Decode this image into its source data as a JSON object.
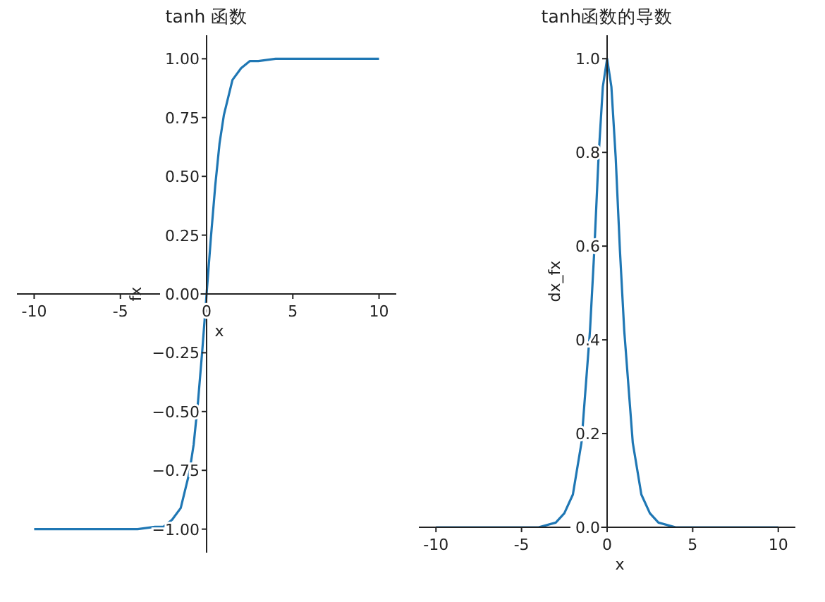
{
  "chart_data": [
    {
      "type": "line",
      "title": "tanh 函数",
      "xlabel": "x",
      "ylabel": "fx",
      "color": "#1f77b4",
      "x": [
        -10,
        -8,
        -6,
        -5,
        -4,
        -3,
        -2.5,
        -2,
        -1.5,
        -1,
        -0.75,
        -0.5,
        -0.25,
        0,
        0.25,
        0.5,
        0.75,
        1,
        1.5,
        2,
        2.5,
        3,
        4,
        5,
        6,
        8,
        10
      ],
      "values": [
        -1,
        -1,
        -1,
        -1,
        -1,
        -0.99,
        -0.99,
        -0.96,
        -0.91,
        -0.76,
        -0.64,
        -0.46,
        -0.24,
        0,
        0.24,
        0.46,
        0.64,
        0.76,
        0.91,
        0.96,
        0.99,
        0.99,
        1,
        1,
        1,
        1,
        1
      ],
      "xlim": [
        -11,
        11
      ],
      "ylim": [
        -1.1,
        1.1
      ],
      "xticks": [
        -10,
        -5,
        0,
        5,
        10
      ],
      "yticks": [
        {
          "value": -1,
          "label": "−1.00"
        },
        {
          "value": -0.75,
          "label": "−0.75"
        },
        {
          "value": -0.5,
          "label": "−0.50"
        },
        {
          "value": -0.25,
          "label": "−0.25"
        },
        {
          "value": 0,
          "label": "0.00"
        },
        {
          "value": 0.25,
          "label": "0.25"
        },
        {
          "value": 0.5,
          "label": "0.50"
        },
        {
          "value": 0.75,
          "label": "0.75"
        },
        {
          "value": 1,
          "label": "1.00"
        }
      ]
    },
    {
      "type": "line",
      "title": "tanh函数的导数",
      "xlabel": "x",
      "ylabel": "dx_fx",
      "color": "#1f77b4",
      "x": [
        -10,
        -8,
        -6,
        -5,
        -4,
        -3,
        -2.5,
        -2,
        -1.5,
        -1,
        -0.75,
        -0.5,
        -0.25,
        0,
        0.25,
        0.5,
        0.75,
        1,
        1.5,
        2,
        2.5,
        3,
        4,
        5,
        6,
        8,
        10
      ],
      "values": [
        0,
        0,
        0,
        0,
        0,
        0.01,
        0.03,
        0.07,
        0.18,
        0.42,
        0.59,
        0.79,
        0.94,
        1,
        0.94,
        0.79,
        0.59,
        0.42,
        0.18,
        0.07,
        0.03,
        0.01,
        0,
        0,
        0,
        0,
        0
      ],
      "xlim": [
        -11,
        11
      ],
      "ylim": [
        0,
        1.05
      ],
      "xticks": [
        -10,
        -5,
        0,
        5,
        10
      ],
      "yticks": [
        {
          "value": 0,
          "label": "0.0"
        },
        {
          "value": 0.2,
          "label": "0.2"
        },
        {
          "value": 0.4,
          "label": "0.4"
        },
        {
          "value": 0.6,
          "label": "0.6"
        },
        {
          "value": 0.8,
          "label": "0.8"
        },
        {
          "value": 1,
          "label": "1.0"
        }
      ]
    }
  ]
}
